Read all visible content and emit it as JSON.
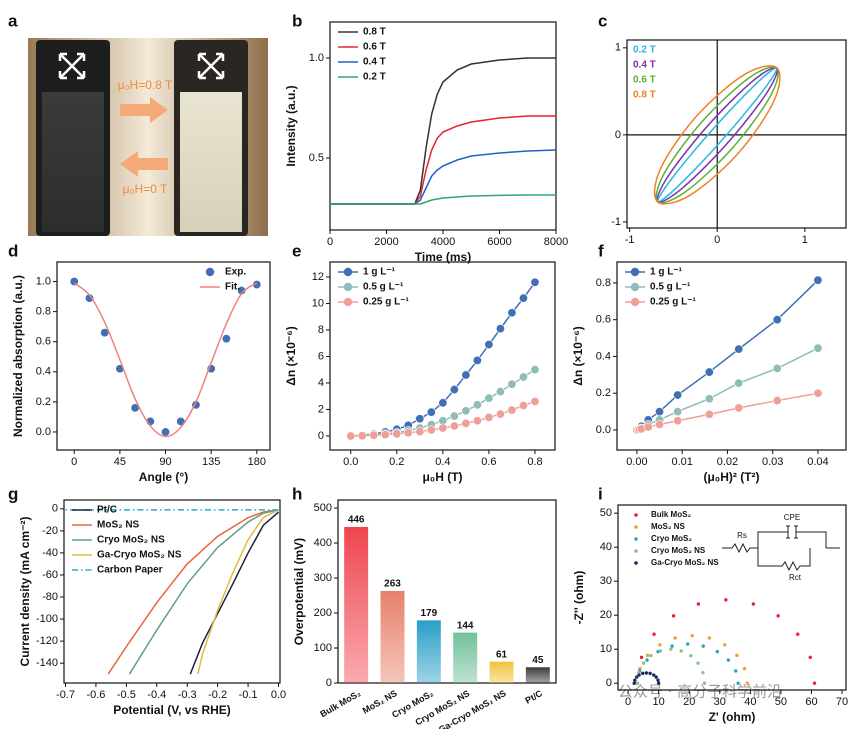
{
  "photo": {
    "panel": "a",
    "labels": [
      "μ₀H=0.8 T",
      "μ₀H=0 T"
    ]
  },
  "watermark": "公众号 · 高分子科学前沿",
  "chart_data": [
    {
      "panel": "b",
      "type": "line",
      "xlabel": "Time (ms)",
      "ylabel": "Intensity (a.u.)",
      "x": [
        0,
        1000,
        2000,
        3000,
        3200,
        3400,
        3600,
        3800,
        4000,
        4500,
        5000,
        6000,
        7000,
        8000
      ],
      "xlim": [
        0,
        8000
      ],
      "xticks": [
        0,
        2000,
        4000,
        6000,
        8000
      ],
      "ylim": [
        0.14,
        1.18
      ],
      "yticks": [
        0.5,
        {
          "value": 1,
          "label": "1.0"
        }
      ],
      "legend": "upper-left",
      "series": [
        {
          "name": "0.8 T",
          "color": "#333333",
          "values": [
            0.27,
            0.27,
            0.27,
            0.27,
            0.34,
            0.55,
            0.72,
            0.82,
            0.88,
            0.94,
            0.97,
            0.99,
            1.0,
            1.0
          ]
        },
        {
          "name": "0.6 T",
          "color": "#e8242b",
          "values": [
            0.27,
            0.27,
            0.27,
            0.27,
            0.31,
            0.44,
            0.54,
            0.6,
            0.63,
            0.66,
            0.68,
            0.7,
            0.71,
            0.71
          ]
        },
        {
          "name": "0.4 T",
          "color": "#1f62c8",
          "values": [
            0.27,
            0.27,
            0.27,
            0.27,
            0.29,
            0.35,
            0.41,
            0.44,
            0.46,
            0.49,
            0.51,
            0.525,
            0.535,
            0.54
          ]
        },
        {
          "name": "0.2 T",
          "color": "#2ea86a",
          "values": [
            0.27,
            0.27,
            0.27,
            0.27,
            0.27,
            0.28,
            0.29,
            0.295,
            0.3,
            0.305,
            0.31,
            0.313,
            0.315,
            0.315
          ]
        }
      ]
    },
    {
      "panel": "c",
      "type": "loop",
      "xlim": [
        -1.03,
        1.47
      ],
      "xticks": [
        -1,
        0,
        1
      ],
      "ylim": [
        -1.07,
        1.09
      ],
      "yticks": [
        -1,
        0,
        1
      ],
      "zero_lines": true,
      "smooth": true,
      "legend": "upper-left",
      "series": [
        {
          "name": "0.2 T",
          "color": "#29b6e8",
          "x": [
            0.68,
            0.438,
            -0.06,
            -0.522,
            -0.68,
            -0.438,
            0.06,
            0.522
          ],
          "values": [
            0.77,
            0.581,
            0.053,
            -0.507,
            -0.77,
            -0.581,
            -0.053,
            0.507
          ]
        },
        {
          "name": "0.4 T",
          "color": "#7d2fb0",
          "x": [
            0.68,
            0.4,
            -0.113,
            -0.56,
            -0.68,
            -0.4,
            0.113,
            0.56
          ],
          "values": [
            0.77,
            0.614,
            0.099,
            -0.474,
            -0.77,
            -0.614,
            -0.099,
            0.474
          ]
        },
        {
          "name": "0.6 T",
          "color": "#5cb030",
          "x": [
            0.68,
            0.358,
            -0.173,
            -0.602,
            -0.68,
            -0.358,
            0.173,
            0.602
          ],
          "values": [
            0.77,
            0.651,
            0.152,
            -0.437,
            -0.77,
            -0.651,
            -0.152,
            0.437
          ]
        },
        {
          "name": "0.8 T",
          "color": "#f0802a",
          "x": [
            0.68,
            0.31,
            -0.24,
            -0.65,
            -0.68,
            -0.31,
            0.24,
            0.65
          ],
          "values": [
            0.77,
            0.693,
            0.211,
            -0.395,
            -0.77,
            -0.693,
            -0.211,
            0.395
          ]
        }
      ]
    },
    {
      "panel": "d",
      "type": "scatter",
      "xlabel": "Angle (°)",
      "ylabel": "Normalized absorption (a.u.)",
      "x": [
        0,
        15,
        30,
        45,
        60,
        75,
        90,
        105,
        120,
        135,
        150,
        165,
        180
      ],
      "xlim": [
        -17,
        193
      ],
      "xticks": [
        0,
        45,
        90,
        135,
        180
      ],
      "ylim": [
        -0.12,
        1.13
      ],
      "yticks": [
        {
          "value": 0,
          "label": "0.0"
        },
        0.2,
        0.4,
        0.6,
        0.8,
        {
          "value": 1,
          "label": "1.0"
        }
      ],
      "legend": "upper-right",
      "smooth": true,
      "series": [
        {
          "name": "Exp.",
          "color": "#3f6fb5",
          "mode": "markers",
          "values": [
            1.0,
            0.89,
            0.66,
            0.42,
            0.16,
            0.07,
            0.0,
            0.07,
            0.18,
            0.42,
            0.62,
            0.94,
            0.98
          ]
        },
        {
          "name": "Fit.",
          "color": "#f08080",
          "mode": "lines",
          "values": [
            0.99,
            0.91,
            0.73,
            0.48,
            0.22,
            0.04,
            -0.03,
            0.03,
            0.2,
            0.46,
            0.72,
            0.92,
            0.99
          ]
        }
      ]
    },
    {
      "panel": "e",
      "type": "scatter",
      "xlabel": "μ₀H (T)",
      "ylabel": "Δn (×10⁻⁶)",
      "x": [
        0,
        0.05,
        0.1,
        0.15,
        0.2,
        0.25,
        0.3,
        0.35,
        0.4,
        0.45,
        0.5,
        0.55,
        0.6,
        0.65,
        0.7,
        0.75,
        0.8
      ],
      "xlim": [
        -0.09,
        0.887
      ],
      "xticks": [
        {
          "value": 0,
          "label": "0.0"
        },
        0.2,
        0.4,
        0.6,
        0.8
      ],
      "ylim": [
        -1.06,
        13.13
      ],
      "yticks": [
        0,
        2,
        4,
        6,
        8,
        10,
        12
      ],
      "legend": "upper-left",
      "series": [
        {
          "name": "1 g L⁻¹",
          "color": "#3f6fb5",
          "mode": "markers+lines",
          "values": [
            0,
            0.05,
            0.15,
            0.3,
            0.5,
            0.8,
            1.3,
            1.8,
            2.5,
            3.5,
            4.6,
            5.7,
            6.9,
            8.1,
            9.3,
            10.4,
            11.6
          ]
        },
        {
          "name": "0.5 g L⁻¹",
          "color": "#8fbcb7",
          "mode": "markers+lines",
          "values": [
            0,
            0.03,
            0.08,
            0.15,
            0.25,
            0.4,
            0.6,
            0.85,
            1.15,
            1.5,
            1.9,
            2.35,
            2.85,
            3.35,
            3.9,
            4.45,
            5.0
          ]
        },
        {
          "name": "0.25 g L⁻¹",
          "color": "#eea097",
          "mode": "markers+lines",
          "values": [
            0,
            0.02,
            0.05,
            0.1,
            0.16,
            0.24,
            0.33,
            0.45,
            0.6,
            0.75,
            0.95,
            1.15,
            1.4,
            1.65,
            1.95,
            2.3,
            2.6
          ]
        }
      ]
    },
    {
      "panel": "f",
      "type": "scatter",
      "xlabel": "(μ₀H)² (T²)",
      "ylabel": "Δn (×10⁻⁶)",
      "x": [
        0,
        0.0003,
        0.0006,
        0.001,
        0.0025,
        0.005,
        0.009,
        0.016,
        0.0225,
        0.031,
        0.04
      ],
      "xlim": [
        -0.0044,
        0.0462
      ],
      "xticks": [
        {
          "value": 0,
          "label": "0.00"
        },
        0.01,
        0.02,
        0.03,
        0.04
      ],
      "ylim": [
        -0.109,
        0.914
      ],
      "yticks": [
        {
          "value": 0,
          "label": "0.0"
        },
        0.2,
        0.4,
        0.6,
        0.8
      ],
      "legend": "upper-left",
      "series": [
        {
          "name": "1 g L⁻¹",
          "color": "#3f6fb5",
          "mode": "markers+lines",
          "values": [
            0,
            0.005,
            0.01,
            0.02,
            0.055,
            0.1,
            0.19,
            0.315,
            0.44,
            0.6,
            0.815
          ]
        },
        {
          "name": "0.5 g L⁻¹",
          "color": "#8fbcb7",
          "mode": "markers+lines",
          "values": [
            0,
            0.003,
            0.006,
            0.01,
            0.03,
            0.055,
            0.1,
            0.17,
            0.255,
            0.335,
            0.445
          ]
        },
        {
          "name": "0.25 g L⁻¹",
          "color": "#eea097",
          "mode": "markers+lines",
          "values": [
            0,
            0.002,
            0.004,
            0.006,
            0.016,
            0.03,
            0.05,
            0.085,
            0.12,
            0.16,
            0.2
          ]
        }
      ]
    },
    {
      "panel": "g",
      "type": "line",
      "xlabel": "Potential (V, vs RHE)",
      "ylabel": "Current density (mA cm⁻²)",
      "xlim": [
        -0.705,
        0.005
      ],
      "xticks": [
        -0.7,
        -0.6,
        -0.5,
        -0.4,
        -0.3,
        -0.2,
        -0.1,
        {
          "value": 0,
          "label": "0.0"
        }
      ],
      "ylim": [
        -158,
        8
      ],
      "yticks": [
        0,
        -20,
        -40,
        -60,
        -80,
        -100,
        -120,
        -140
      ],
      "legend": "upper-left",
      "series": [
        {
          "name": "Pt/C",
          "color": "#1b2440",
          "x": [
            0,
            -0.05,
            -0.1,
            -0.15,
            -0.2,
            -0.25,
            -0.29
          ],
          "values": [
            -3,
            -15,
            -40,
            -68,
            -95,
            -122,
            -150
          ]
        },
        {
          "name": "MoS₂ NS",
          "color": "#e8663c",
          "x": [
            0,
            -0.05,
            -0.1,
            -0.2,
            -0.3,
            -0.4,
            -0.5,
            -0.56
          ],
          "values": [
            -1,
            -3,
            -8,
            -25,
            -50,
            -85,
            -125,
            -150
          ]
        },
        {
          "name": "Cryo MoS₂ NS",
          "color": "#5fa08a",
          "x": [
            0,
            -0.05,
            -0.1,
            -0.2,
            -0.3,
            -0.4,
            -0.49
          ],
          "values": [
            -1,
            -4,
            -12,
            -35,
            -68,
            -110,
            -150
          ]
        },
        {
          "name": "Ga-Cryo MoS₂ NS",
          "color": "#e8b840",
          "x": [
            0,
            -0.05,
            -0.1,
            -0.15,
            -0.2,
            -0.25,
            -0.265
          ],
          "values": [
            -1,
            -8,
            -28,
            -58,
            -92,
            -132,
            -150
          ]
        },
        {
          "name": "Carbon Paper",
          "color": "#2aa8d8",
          "dash": "dash-dot",
          "x": [
            0,
            -0.7
          ],
          "values": [
            -1,
            -1
          ]
        }
      ]
    },
    {
      "panel": "h",
      "type": "bar",
      "ylabel": "Overpotential (mV)",
      "categories": [
        "Bulk MoS₂",
        "MoS₂ NS",
        "Cryo MoS₂",
        "Cryo MoS₂ NS",
        "Ga-Cryo MoS₂ NS",
        "Pt/C"
      ],
      "values": [
        446,
        263,
        179,
        144,
        61,
        45
      ],
      "colors": [
        "#f0454f",
        "#e8806a",
        "#2a9ec8",
        "#72c09a",
        "#f2c23e",
        "#3a3a3a"
      ],
      "ylim": [
        0,
        523
      ],
      "yticks": [
        0,
        100,
        200,
        300,
        400,
        500
      ]
    },
    {
      "panel": "i",
      "type": "scatter",
      "xlabel": "Z' (ohm)",
      "ylabel": "-Z'' (ohm)",
      "xlim": [
        -3.3,
        71.3
      ],
      "xticks": [
        0,
        10,
        20,
        30,
        40,
        50,
        60,
        70
      ],
      "ylim": [
        -2,
        52.4
      ],
      "yticks": [
        0,
        10,
        20,
        30,
        40,
        50
      ],
      "legend": "upper-left",
      "marker": "dot",
      "annotations": [
        "CPE",
        "Rs",
        "Rct"
      ],
      "series": [
        {
          "name": "Bulk MoS₂",
          "color": "#e8242b",
          "mode": "markers",
          "x": [
            3,
            4.4,
            8.5,
            14.9,
            23.0,
            32,
            41.0,
            49.1,
            55.5,
            59.6,
            61
          ],
          "values": [
            0,
            7.6,
            14.4,
            19.8,
            23.3,
            24.5,
            23.3,
            19.8,
            14.4,
            7.6,
            0
          ]
        },
        {
          "name": "MoS₂ NS",
          "color": "#f0a030",
          "mode": "markers",
          "x": [
            3,
            3.9,
            6.4,
            10.4,
            15.4,
            21,
            26.6,
            31.6,
            35.6,
            38.1,
            39
          ],
          "values": [
            0,
            4.3,
            8.2,
            11.3,
            13.3,
            14,
            13.3,
            11.3,
            8.2,
            4.3,
            0
          ]
        },
        {
          "name": "Cryo MoS₂",
          "color": "#2aa6c0",
          "mode": "markers",
          "x": [
            3,
            3.8,
            6.2,
            9.8,
            14.4,
            19.5,
            24.6,
            29.2,
            32.8,
            35.2,
            36
          ],
          "values": [
            0,
            3.6,
            6.8,
            9.3,
            10.9,
            11.5,
            10.9,
            9.3,
            6.8,
            3.6,
            0
          ]
        },
        {
          "name": "Cryo MoS₂ NS",
          "color": "#8cc08c",
          "mode": "markers",
          "x": [
            3,
            3.5,
            5.1,
            7.5,
            10.6,
            14,
            17.4,
            20.5,
            22.9,
            24.5,
            25
          ],
          "values": [
            0,
            3.1,
            5.9,
            8.1,
            9.5,
            10,
            9.5,
            8.1,
            5.9,
            3.1,
            0
          ]
        },
        {
          "name": "Ga-Cryo MoS₂ NS",
          "color": "#1c2a5c",
          "mode": "markers",
          "x": [
            2,
            2.2,
            2.8,
            3.6,
            4.8,
            6,
            7.2,
            8.4,
            9.2,
            9.8,
            10
          ],
          "values": [
            0,
            0.9,
            1.8,
            2.4,
            2.9,
            3,
            2.9,
            2.4,
            1.8,
            0.9,
            0
          ]
        }
      ]
    }
  ]
}
